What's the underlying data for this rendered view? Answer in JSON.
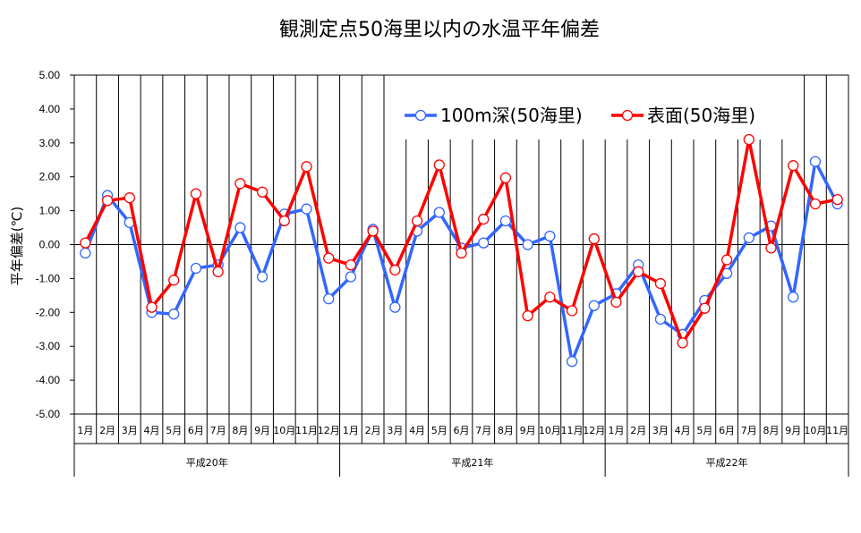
{
  "chart_data": {
    "type": "line",
    "title": "観測定点50海里以内の水温平年偏差",
    "ylabel": "平年偏差(℃)",
    "xlabel": "",
    "ylim": [
      -5,
      5
    ],
    "yticks": [
      "5.00",
      "4.00",
      "3.00",
      "2.00",
      "1.00",
      "0.00",
      "-1.00",
      "-2.00",
      "-3.00",
      "-4.00",
      "-5.00"
    ],
    "categories": [
      "1月",
      "2月",
      "3月",
      "4月",
      "5月",
      "6月",
      "7月",
      "8月",
      "9月",
      "10月",
      "11月",
      "12月",
      "1月",
      "2月",
      "3月",
      "4月",
      "5月",
      "6月",
      "7月",
      "8月",
      "9月",
      "10月",
      "11月",
      "12月",
      "1月",
      "2月",
      "3月",
      "4月",
      "5月",
      "6月",
      "7月",
      "8月",
      "9月",
      "10月",
      "11月"
    ],
    "groups": [
      {
        "label": "平成20年",
        "count": 12
      },
      {
        "label": "平成21年",
        "count": 12
      },
      {
        "label": "平成22年",
        "count": 11
      }
    ],
    "legend_position": "top-right",
    "series": [
      {
        "name": "100m深(50海里)",
        "color": "#3366ff",
        "values": [
          -0.25,
          1.45,
          0.65,
          -2.0,
          -2.05,
          -0.7,
          -0.6,
          0.5,
          -0.95,
          0.9,
          1.05,
          -1.6,
          -0.95,
          0.45,
          -1.85,
          0.4,
          0.95,
          -0.1,
          0.05,
          0.7,
          0.0,
          0.25,
          -3.45,
          -1.8,
          -1.45,
          -0.6,
          -2.2,
          -2.65,
          -1.65,
          -0.85,
          0.2,
          0.55,
          -1.55,
          2.45,
          1.2
        ]
      },
      {
        "name": "表面(50海里)",
        "color": "#ff0000",
        "values": [
          0.05,
          1.3,
          1.38,
          -1.85,
          -1.05,
          1.5,
          -0.8,
          1.8,
          1.55,
          0.7,
          2.3,
          -0.4,
          -0.6,
          0.4,
          -0.75,
          0.7,
          2.35,
          -0.25,
          0.75,
          1.97,
          -2.1,
          -1.55,
          -1.95,
          0.17,
          -1.7,
          -0.8,
          -1.15,
          -2.9,
          -1.88,
          -0.45,
          3.1,
          -0.1,
          2.33,
          1.2,
          1.33
        ]
      }
    ]
  }
}
